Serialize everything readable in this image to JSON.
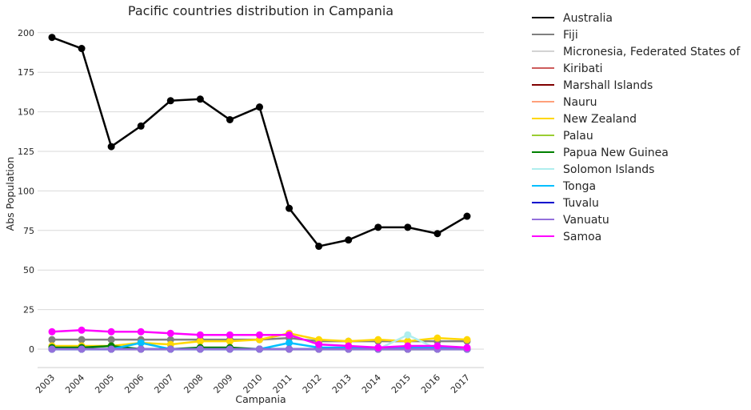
{
  "chart_data": {
    "type": "line",
    "title": "Pacific countries distribution in Campania",
    "xlabel": "Campania",
    "ylabel": "Abs Population",
    "x": [
      "2003",
      "2004",
      "2005",
      "2006",
      "2007",
      "2008",
      "2009",
      "2010",
      "2011",
      "2012",
      "2013",
      "2014",
      "2015",
      "2016",
      "2017"
    ],
    "ylim": [
      -12,
      210
    ],
    "yticks": [
      0,
      25,
      50,
      75,
      100,
      125,
      150,
      175,
      200
    ],
    "grid": "horizontal",
    "legend_position": "outside right",
    "series": [
      {
        "name": "Australia",
        "color": "#000000",
        "values": [
          197,
          190,
          128,
          141,
          157,
          158,
          145,
          153,
          89,
          65,
          69,
          77,
          77,
          73,
          84
        ]
      },
      {
        "name": "Fiji",
        "color": "#808080",
        "values": [
          6,
          6,
          6,
          6,
          6,
          6,
          6,
          6,
          7,
          5,
          5,
          5,
          5,
          5,
          5
        ]
      },
      {
        "name": "Micronesia, Federated States of",
        "color": "#d3d3d3",
        "values": [
          0,
          0,
          0,
          0,
          0,
          0,
          0,
          0,
          0,
          0,
          0,
          0,
          0,
          0,
          0
        ]
      },
      {
        "name": "Kiribati",
        "color": "#cd5c5c",
        "values": [
          0,
          0,
          0,
          0,
          0,
          0,
          0,
          0,
          0,
          0,
          0,
          0,
          0,
          0,
          0
        ]
      },
      {
        "name": "Marshall Islands",
        "color": "#800000",
        "values": [
          0,
          0,
          0,
          0,
          0,
          0,
          0,
          0,
          0,
          0,
          0,
          0,
          0,
          0,
          0
        ]
      },
      {
        "name": "Nauru",
        "color": "#ffa07a",
        "values": [
          0,
          0,
          0,
          0,
          0,
          0,
          0,
          0,
          0,
          0,
          0,
          0,
          0,
          0,
          0
        ]
      },
      {
        "name": "New Zealand",
        "color": "#ffd700",
        "values": [
          2,
          2,
          2,
          4,
          3,
          5,
          5,
          6,
          10,
          6,
          5,
          6,
          5,
          7,
          6
        ]
      },
      {
        "name": "Palau",
        "color": "#9acd32",
        "values": [
          0,
          0,
          0,
          0,
          0,
          0,
          0,
          0,
          0,
          0,
          0,
          0,
          0,
          0,
          0
        ]
      },
      {
        "name": "Papua New Guinea",
        "color": "#008000",
        "values": [
          1,
          1,
          2,
          0,
          0,
          1,
          1,
          0,
          0,
          0,
          0,
          0,
          0,
          0,
          0
        ]
      },
      {
        "name": "Solomon Islands",
        "color": "#afeeee",
        "values": [
          0,
          0,
          0,
          0,
          0,
          0,
          0,
          0,
          0,
          0,
          0,
          0,
          9,
          0,
          0
        ]
      },
      {
        "name": "Tonga",
        "color": "#00bfff",
        "values": [
          0,
          0,
          0,
          4,
          0,
          0,
          0,
          0,
          4,
          1,
          1,
          0,
          1,
          1,
          0
        ]
      },
      {
        "name": "Tuvalu",
        "color": "#0000cd",
        "values": [
          0,
          0,
          0,
          0,
          0,
          0,
          0,
          0,
          0,
          0,
          0,
          0,
          0,
          0,
          0
        ]
      },
      {
        "name": "Vanuatu",
        "color": "#9370db",
        "values": [
          0,
          0,
          0,
          0,
          0,
          0,
          0,
          0,
          0,
          0,
          0,
          0,
          0,
          0,
          0
        ]
      },
      {
        "name": "Samoa",
        "color": "#ff00ff",
        "values": [
          11,
          12,
          11,
          11,
          10,
          9,
          9,
          9,
          9,
          3,
          2,
          1,
          2,
          2,
          1
        ]
      }
    ]
  }
}
